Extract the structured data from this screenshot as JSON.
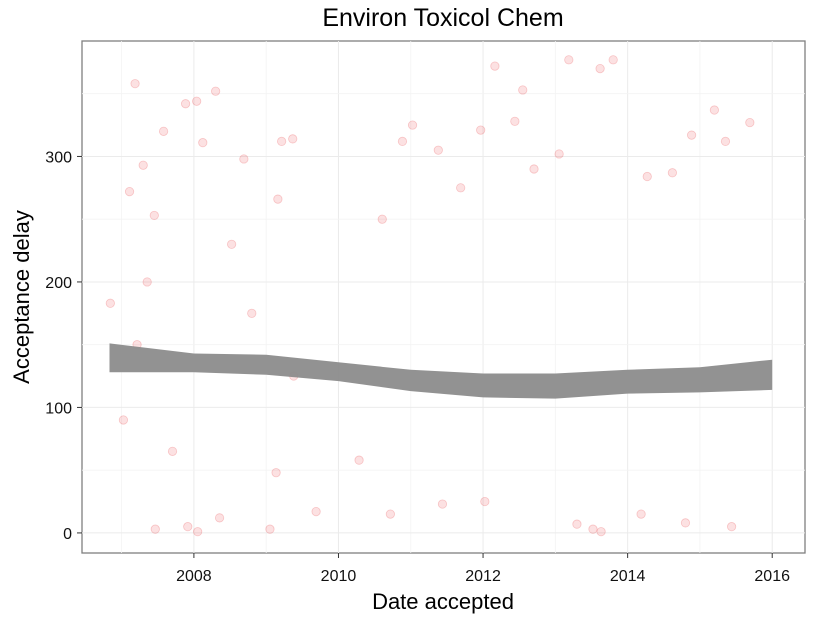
{
  "chart_data": {
    "type": "scatter",
    "title": "Environ Toxicol Chem",
    "xlabel": "Date accepted",
    "ylabel": "Acceptance delay",
    "xlim": [
      "2006-06-15",
      "2016-06-15"
    ],
    "ylim": [
      -16,
      392
    ],
    "x_ticks": [
      "2008",
      "2010",
      "2012",
      "2014",
      "2016"
    ],
    "x_tick_values": [
      "2008-01-01",
      "2010-01-01",
      "2012-01-01",
      "2014-01-01",
      "2016-01-01"
    ],
    "y_ticks": [
      "0",
      "100",
      "200",
      "300"
    ],
    "y_tick_values": [
      0,
      100,
      200,
      300
    ],
    "grid": true,
    "point_color": "#e41a1c",
    "point_opacity": 0.13,
    "smooth_color": "#8c8c8c",
    "series": [
      {
        "kind": "points",
        "values": [
          {
            "x": "2006-11-05",
            "y": 183
          },
          {
            "x": "2007-03-10",
            "y": 358
          },
          {
            "x": "2007-02-10",
            "y": 272
          },
          {
            "x": "2007-04-20",
            "y": 293
          },
          {
            "x": "2007-08-01",
            "y": 320
          },
          {
            "x": "2007-06-15",
            "y": 253
          },
          {
            "x": "2007-11-20",
            "y": 342
          },
          {
            "x": "2008-01-15",
            "y": 344
          },
          {
            "x": "2008-04-20",
            "y": 352
          },
          {
            "x": "2008-02-15",
            "y": 311
          },
          {
            "x": "2008-09-10",
            "y": 298
          },
          {
            "x": "2009-03-20",
            "y": 312
          },
          {
            "x": "2009-05-15",
            "y": 314
          },
          {
            "x": "2009-03-01",
            "y": 266
          },
          {
            "x": "2007-01-10",
            "y": 90
          },
          {
            "x": "2007-03-20",
            "y": 150
          },
          {
            "x": "2007-05-10",
            "y": 200
          },
          {
            "x": "2007-06-20",
            "y": 3
          },
          {
            "x": "2007-09-15",
            "y": 65
          },
          {
            "x": "2007-12-01",
            "y": 5
          },
          {
            "x": "2008-01-20",
            "y": 1
          },
          {
            "x": "2008-05-10",
            "y": 12
          },
          {
            "x": "2009-01-20",
            "y": 3
          },
          {
            "x": "2009-02-20",
            "y": 48
          },
          {
            "x": "2009-09-10",
            "y": 17
          },
          {
            "x": "2008-07-10",
            "y": 230
          },
          {
            "x": "2008-10-20",
            "y": 175
          },
          {
            "x": "2009-05-20",
            "y": 125
          },
          {
            "x": "2010-04-15",
            "y": 58
          },
          {
            "x": "2010-09-20",
            "y": 15
          },
          {
            "x": "2010-08-10",
            "y": 250
          },
          {
            "x": "2010-11-20",
            "y": 312
          },
          {
            "x": "2011-01-10",
            "y": 325
          },
          {
            "x": "2011-05-20",
            "y": 305
          },
          {
            "x": "2011-09-10",
            "y": 275
          },
          {
            "x": "2011-12-20",
            "y": 321
          },
          {
            "x": "2012-06-10",
            "y": 328
          },
          {
            "x": "2012-03-01",
            "y": 372
          },
          {
            "x": "2012-09-15",
            "y": 290
          },
          {
            "x": "2013-01-20",
            "y": 302
          },
          {
            "x": "2013-03-10",
            "y": 377
          },
          {
            "x": "2013-08-15",
            "y": 370
          },
          {
            "x": "2013-10-20",
            "y": 377
          },
          {
            "x": "2014-04-10",
            "y": 284
          },
          {
            "x": "2014-08-15",
            "y": 287
          },
          {
            "x": "2014-11-20",
            "y": 317
          },
          {
            "x": "2015-03-15",
            "y": 337
          },
          {
            "x": "2015-09-10",
            "y": 327
          },
          {
            "x": "2015-05-10",
            "y": 312
          },
          {
            "x": "2012-07-20",
            "y": 353
          },
          {
            "x": "2013-07-10",
            "y": 3
          },
          {
            "x": "2013-08-20",
            "y": 1
          },
          {
            "x": "2013-04-20",
            "y": 7
          },
          {
            "x": "2014-10-20",
            "y": 8
          },
          {
            "x": "2015-06-10",
            "y": 5
          },
          {
            "x": "2012-01-10",
            "y": 25
          },
          {
            "x": "2011-06-10",
            "y": 23
          },
          {
            "x": "2014-03-10",
            "y": 15
          }
        ]
      },
      {
        "kind": "smooth_band",
        "x": [
          "2006-11-01",
          "2008-01-01",
          "2009-01-01",
          "2010-01-01",
          "2011-01-01",
          "2012-01-01",
          "2013-01-01",
          "2014-01-01",
          "2015-01-01",
          "2016-01-01"
        ],
        "lower": [
          128,
          128,
          126,
          121,
          113,
          108,
          107,
          111,
          112,
          114
        ],
        "upper": [
          151,
          143,
          142,
          136,
          130,
          127,
          127,
          130,
          132,
          138
        ]
      }
    ]
  }
}
